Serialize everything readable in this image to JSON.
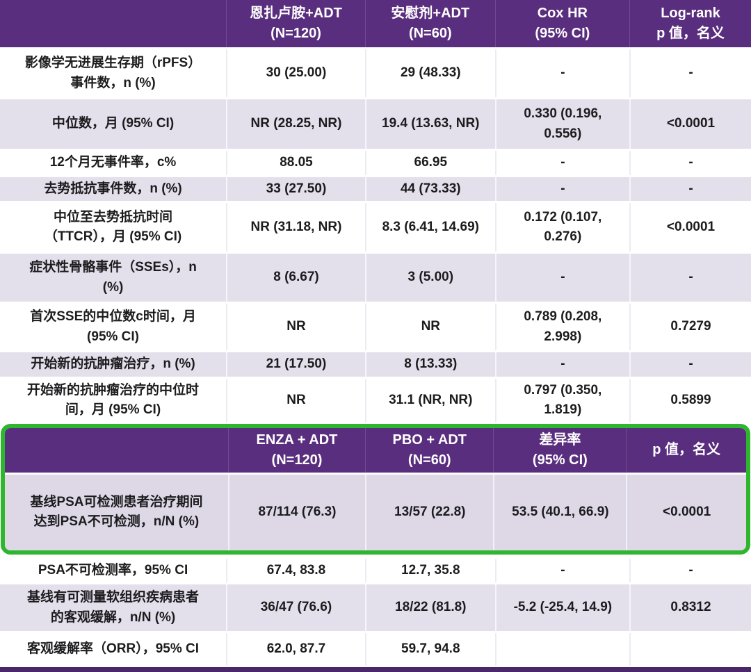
{
  "colors": {
    "header_bg": "#5a2e7e",
    "row_alt_bg": "#e3dfeb",
    "highlight_row_bg": "#ddd7e6",
    "highlight_border_green": "#2fb62f",
    "bottom_rule": "#4a2768",
    "text": "#1c1c1e",
    "header_text": "#ffffff"
  },
  "section1": {
    "header": {
      "col0": "",
      "col1": "恩扎卢胺+ADT\n(N=120)",
      "col2": "安慰剂+ADT\n(N=60)",
      "col3": "Cox HR\n(95% CI)",
      "col4": "Log-rank\np 值，名义"
    },
    "rows": [
      {
        "label": "影像学无进展生存期（rPFS）\n事件数，n (%)",
        "values": [
          "30 (25.00)",
          "29 (48.33)",
          "-",
          "-"
        ]
      },
      {
        "label": "中位数，月 (95% CI)",
        "values": [
          "NR (28.25, NR)",
          "19.4 (13.63, NR)",
          "0.330 (0.196,\n0.556)",
          "<0.0001"
        ]
      },
      {
        "label": "12个月无事件率，c%",
        "values": [
          "88.05",
          "66.95",
          "-",
          "-"
        ]
      },
      {
        "label": "去势抵抗事件数，n (%)",
        "values": [
          "33 (27.50)",
          "44 (73.33)",
          "-",
          "-"
        ]
      },
      {
        "label": "中位至去势抵抗时间\n（TTCR），月 (95% CI)",
        "values": [
          "NR (31.18, NR)",
          "8.3 (6.41, 14.69)",
          "0.172 (0.107,\n0.276)",
          "<0.0001"
        ]
      },
      {
        "label": "症状性骨骼事件（SSEs），n\n(%)",
        "values": [
          "8 (6.67)",
          "3 (5.00)",
          "-",
          "-"
        ]
      },
      {
        "label": "首次SSE的中位数c时间，月\n(95% CI)",
        "values": [
          "NR",
          "NR",
          "0.789 (0.208,\n2.998)",
          "0.7279"
        ]
      },
      {
        "label": "开始新的抗肿瘤治疗，n (%)",
        "values": [
          "21 (17.50)",
          "8 (13.33)",
          "-",
          "-"
        ]
      },
      {
        "label": "开始新的抗肿瘤治疗的中位时\n间，月 (95% CI)",
        "values": [
          "NR",
          "31.1 (NR, NR)",
          "0.797 (0.350,\n1.819)",
          "0.5899"
        ]
      }
    ]
  },
  "section2": {
    "header": {
      "col0": "",
      "col1": "ENZA + ADT\n(N=120)",
      "col2": "PBO + ADT\n(N=60)",
      "col3": "差异率\n(95% CI)",
      "col4": "p 值，名义"
    },
    "highlight_row": {
      "label": "基线PSA可检测患者治疗期间\n达到PSA不可检测，n/N (%)",
      "values": [
        "87/114 (76.3)",
        "13/57 (22.8)",
        "53.5 (40.1, 66.9)",
        "<0.0001"
      ]
    },
    "rows": [
      {
        "label": "PSA不可检测率，95% CI",
        "values": [
          "67.4, 83.8",
          "12.7, 35.8",
          "-",
          "-"
        ]
      },
      {
        "label": "基线有可测量软组织疾病患者\n的客观缓解，n/N (%)",
        "values": [
          "36/47 (76.6)",
          "18/22 (81.8)",
          "-5.2 (-25.4, 14.9)",
          "0.8312"
        ]
      },
      {
        "label": "客观缓解率（ORR），95% CI",
        "values": [
          "62.0, 87.7",
          "59.7, 94.8",
          "",
          ""
        ]
      }
    ]
  }
}
